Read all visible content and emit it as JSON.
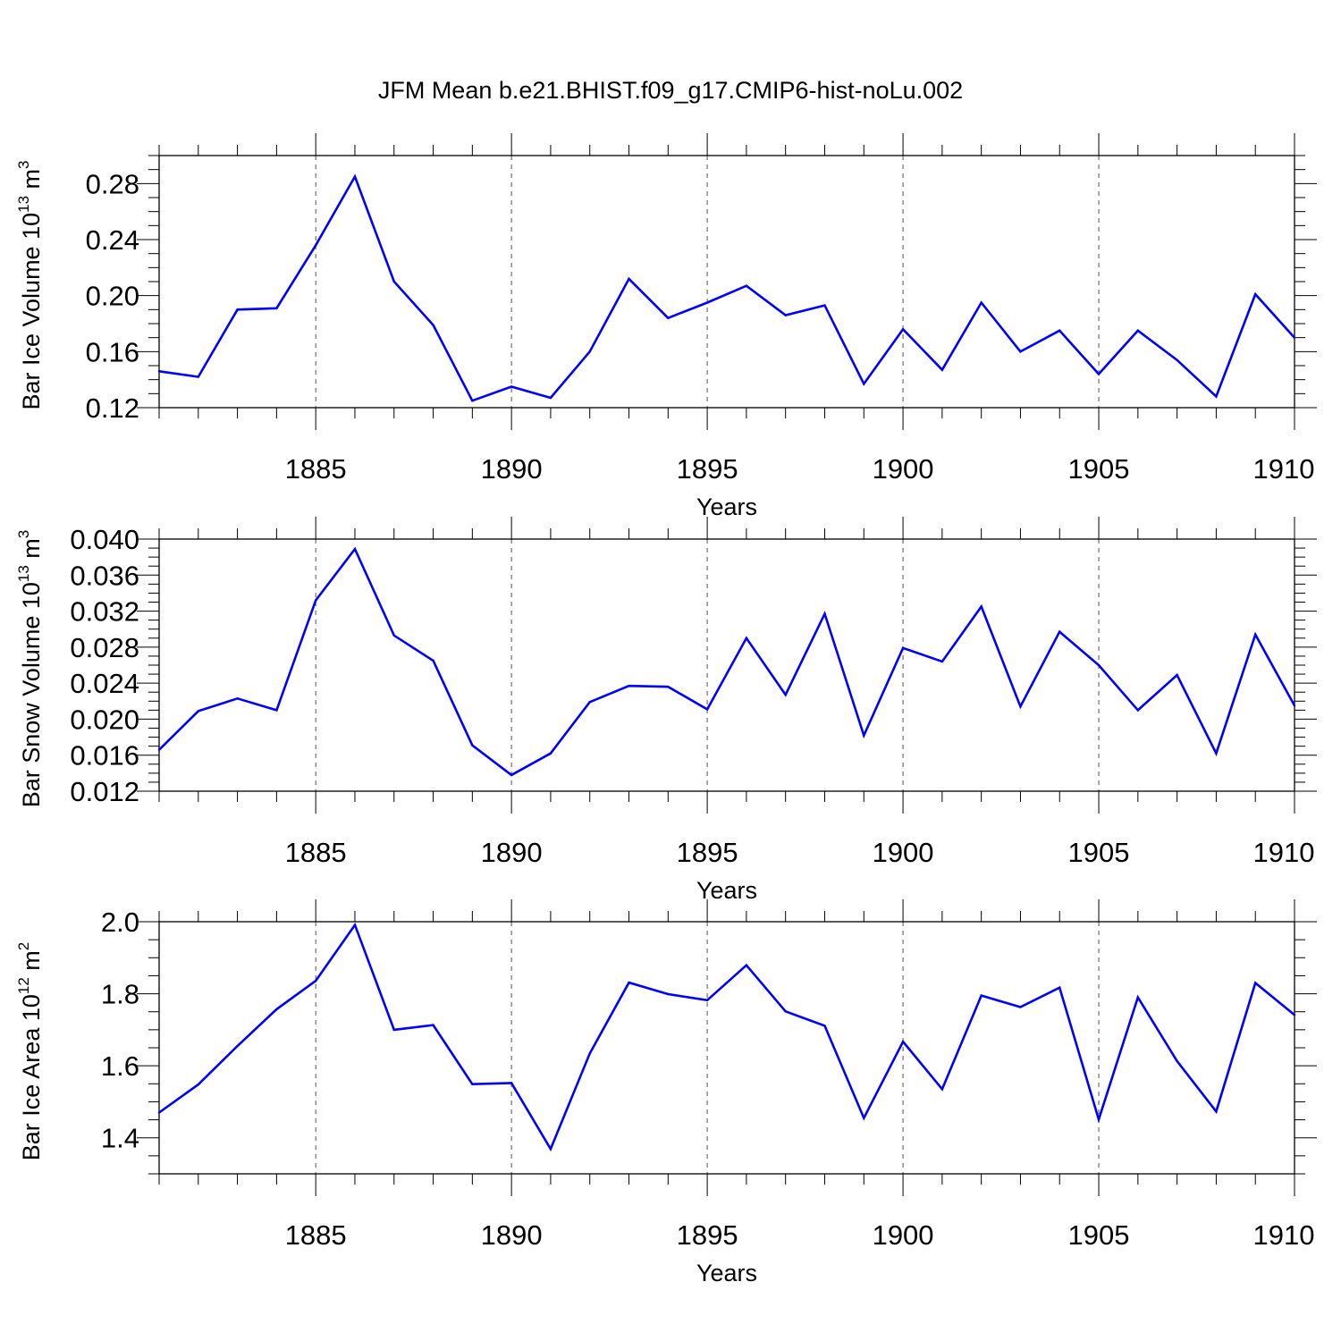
{
  "title": "JFM Mean b.e21.BHIST.f09_g17.CMIP6-hist-noLu.002",
  "colors": {
    "line": "#0000ff",
    "axis": "#000000",
    "grid": "#555555"
  },
  "chart_data": [
    {
      "type": "line",
      "ylabel": {
        "text": "Bar Ice Volume 10",
        "sup1": "13",
        "mid": " m",
        "sup2": "3"
      },
      "xlabel": "Years",
      "xlim": [
        1881,
        1910
      ],
      "ylim": [
        0.12,
        0.3
      ],
      "yticks": [
        0.12,
        0.16,
        0.2,
        0.24,
        0.28
      ],
      "ytick_labels": [
        "0.12",
        "0.16",
        "0.20",
        "0.24",
        "0.28"
      ],
      "xticks": [
        1885,
        1890,
        1895,
        1900,
        1905,
        1910
      ],
      "xtick_labels": [
        "1885",
        "1890",
        "1895",
        "1900",
        "1905",
        "1910"
      ],
      "x": [
        1881,
        1882,
        1883,
        1884,
        1885,
        1886,
        1887,
        1888,
        1889,
        1890,
        1891,
        1892,
        1893,
        1894,
        1895,
        1896,
        1897,
        1898,
        1899,
        1900,
        1901,
        1902,
        1903,
        1904,
        1905,
        1906,
        1907,
        1908,
        1909,
        1910
      ],
      "values": [
        0.146,
        0.142,
        0.19,
        0.191,
        0.236,
        0.285,
        0.21,
        0.179,
        0.125,
        0.135,
        0.127,
        0.16,
        0.212,
        0.184,
        0.195,
        0.207,
        0.186,
        0.193,
        0.137,
        0.176,
        0.147,
        0.195,
        0.16,
        0.175,
        0.144,
        0.175,
        0.154,
        0.128,
        0.201,
        0.17
      ]
    },
    {
      "type": "line",
      "ylabel": {
        "text": "Bar Snow Volume 10",
        "sup1": "13",
        "mid": " m",
        "sup2": "3"
      },
      "xlabel": "Years",
      "xlim": [
        1881,
        1910
      ],
      "ylim": [
        0.012,
        0.04
      ],
      "yticks": [
        0.012,
        0.016,
        0.02,
        0.024,
        0.028,
        0.032,
        0.036,
        0.04
      ],
      "ytick_labels": [
        "0.012",
        "0.016",
        "0.020",
        "0.024",
        "0.028",
        "0.032",
        "0.036",
        "0.040"
      ],
      "xticks": [
        1885,
        1890,
        1895,
        1900,
        1905,
        1910
      ],
      "xtick_labels": [
        "1885",
        "1890",
        "1895",
        "1900",
        "1905",
        "1910"
      ],
      "x": [
        1881,
        1882,
        1883,
        1884,
        1885,
        1886,
        1887,
        1888,
        1889,
        1890,
        1891,
        1892,
        1893,
        1894,
        1895,
        1896,
        1897,
        1898,
        1899,
        1900,
        1901,
        1902,
        1903,
        1904,
        1905,
        1906,
        1907,
        1908,
        1909,
        1910
      ],
      "values": [
        0.0166,
        0.0209,
        0.0223,
        0.021,
        0.0332,
        0.0389,
        0.0293,
        0.0265,
        0.0171,
        0.0138,
        0.0162,
        0.0219,
        0.0237,
        0.0236,
        0.0211,
        0.029,
        0.0227,
        0.0317,
        0.0182,
        0.0279,
        0.0264,
        0.0325,
        0.0214,
        0.0297,
        0.026,
        0.021,
        0.0249,
        0.0162,
        0.0294,
        0.0215
      ]
    },
    {
      "type": "line",
      "ylabel": {
        "text": "Bar Ice Area 10",
        "sup1": "12",
        "mid": " m",
        "sup2": "2"
      },
      "xlabel": "Years",
      "xlim": [
        1881,
        1910
      ],
      "ylim": [
        1.3,
        2.0
      ],
      "yticks": [
        1.4,
        1.6,
        1.8,
        2.0
      ],
      "ytick_labels": [
        "1.4",
        "1.6",
        "1.8",
        "2.0"
      ],
      "xticks": [
        1885,
        1890,
        1895,
        1900,
        1905,
        1910
      ],
      "xtick_labels": [
        "1885",
        "1890",
        "1895",
        "1900",
        "1905",
        "1910"
      ],
      "x": [
        1881,
        1882,
        1883,
        1884,
        1885,
        1886,
        1887,
        1888,
        1889,
        1890,
        1891,
        1892,
        1893,
        1894,
        1895,
        1896,
        1897,
        1898,
        1899,
        1900,
        1901,
        1902,
        1903,
        1904,
        1905,
        1906,
        1907,
        1908,
        1909,
        1910
      ],
      "values": [
        1.47,
        1.548,
        1.655,
        1.757,
        1.836,
        1.991,
        1.7,
        1.713,
        1.549,
        1.552,
        1.369,
        1.634,
        1.831,
        1.799,
        1.782,
        1.879,
        1.751,
        1.711,
        1.455,
        1.667,
        1.535,
        1.795,
        1.763,
        1.817,
        1.451,
        1.79,
        1.613,
        1.473,
        1.83,
        1.741
      ]
    }
  ]
}
